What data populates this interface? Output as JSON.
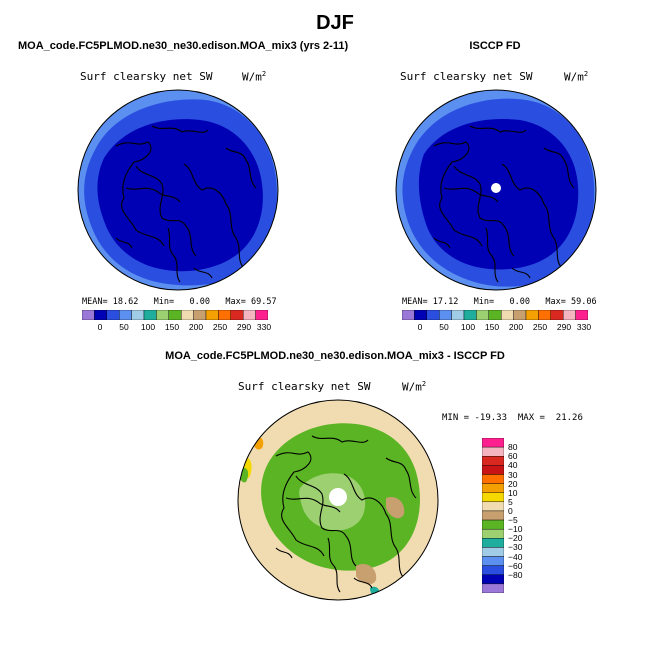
{
  "page": {
    "title": "DJF"
  },
  "panels": {
    "left": {
      "case_title": "MOA_code.FC5PLMOD.ne30_ne30.edison.MOA_mix3 (yrs 2-11)",
      "variable": "Surf clearsky net SW",
      "units_base": "W/m",
      "units_exp": "2",
      "mean_label": "MEAN=",
      "mean_value": "18.62",
      "min_label": "Min=",
      "min_value": "0.00",
      "max_label": "Max=",
      "max_value": "69.57"
    },
    "right": {
      "case_title": "ISCCP FD",
      "variable": "Surf clearsky net SW",
      "units_base": "W/m",
      "units_exp": "2",
      "mean_label": "MEAN=",
      "mean_value": "17.12",
      "min_label": "Min=",
      "min_value": "0.00",
      "max_label": "Max=",
      "max_value": "59.06"
    },
    "diff": {
      "case_title": "MOA_code.FC5PLMOD.ne30_ne30.edison.MOA_mix3 - ISCCP FD",
      "variable": "Surf clearsky net SW",
      "units_base": "W/m",
      "units_exp": "2",
      "minmax_text": "MIN = -19.33  MAX =  21.26"
    }
  },
  "chart_data": [
    {
      "type": "heatmap",
      "subtype": "polar-stereographic",
      "title": "MOA_code.FC5PLMOD.ne30_ne30.edison.MOA_mix3 (yrs 2-11)",
      "variable": "Surf clearsky net SW",
      "units": "W/m^2",
      "stats": {
        "mean": 18.62,
        "min": 0.0,
        "max": 69.57
      },
      "levels": [
        0,
        50,
        100,
        150,
        200,
        250,
        290,
        330
      ],
      "level_labels": [
        "0",
        "50",
        "100",
        "150",
        "200",
        "250",
        "290",
        "330"
      ],
      "colors": [
        "#9b78d8",
        "#0000b4",
        "#2a4ee0",
        "#5b8ff0",
        "#a0cce8",
        "#1fae9e",
        "#9cd070",
        "#5ab424",
        "#f0dcb0",
        "#c8a070",
        "#f4a000",
        "#ff7000",
        "#d82820",
        "#f4b4c0",
        "#ff2090"
      ],
      "regions": [
        {
          "name": "outer",
          "color": "#5b8ff0"
        },
        {
          "name": "mid",
          "color": "#2a4ee0"
        },
        {
          "name": "polar",
          "color": "#0000b4"
        }
      ]
    },
    {
      "type": "heatmap",
      "subtype": "polar-stereographic",
      "title": "ISCCP FD",
      "variable": "Surf clearsky net SW",
      "units": "W/m^2",
      "stats": {
        "mean": 17.12,
        "min": 0.0,
        "max": 59.06
      },
      "levels": [
        0,
        50,
        100,
        150,
        200,
        250,
        290,
        330
      ],
      "level_labels": [
        "0",
        "50",
        "100",
        "150",
        "200",
        "250",
        "290",
        "330"
      ],
      "colors": [
        "#9b78d8",
        "#0000b4",
        "#2a4ee0",
        "#5b8ff0",
        "#a0cce8",
        "#1fae9e",
        "#9cd070",
        "#5ab424",
        "#f0dcb0",
        "#c8a070",
        "#f4a000",
        "#ff7000",
        "#d82820",
        "#f4b4c0",
        "#ff2090"
      ],
      "regions": [
        {
          "name": "outer",
          "color": "#5b8ff0"
        },
        {
          "name": "mid",
          "color": "#2a4ee0"
        },
        {
          "name": "polar",
          "color": "#0000b4"
        },
        {
          "name": "pole-missing",
          "color": "#ffffff"
        }
      ]
    },
    {
      "type": "heatmap",
      "subtype": "polar-stereographic-difference",
      "title": "MOA_code.FC5PLMOD.ne30_ne30.edison.MOA_mix3 - ISCCP FD",
      "variable": "Surf clearsky net SW",
      "units": "W/m^2",
      "stats": {
        "min": -19.33,
        "max": 21.26
      },
      "levels": [
        80,
        60,
        40,
        30,
        20,
        10,
        5,
        0,
        -5,
        -10,
        -20,
        -30,
        -40,
        -60,
        -80
      ],
      "level_labels": [
        "80",
        "60",
        "40",
        "30",
        "20",
        "10",
        "5",
        "0",
        "−5",
        "−10",
        "−20",
        "−30",
        "−40",
        "−60",
        "−80"
      ],
      "colors": [
        "#ff2090",
        "#f4b4c0",
        "#d82820",
        "#c81414",
        "#ff7000",
        "#f4a000",
        "#f4d800",
        "#f0dcb0",
        "#c8a070",
        "#5ab424",
        "#9cd070",
        "#1fae9e",
        "#a0cce8",
        "#5b8ff0",
        "#2a4ee0",
        "#0000b4",
        "#9b78d8"
      ],
      "regions": [
        {
          "name": "outer",
          "color": "#f0dcb0"
        },
        {
          "name": "polar",
          "color": "#5ab424"
        },
        {
          "name": "inner",
          "color": "#9cd070"
        },
        {
          "name": "pole-missing",
          "color": "#ffffff"
        }
      ]
    }
  ]
}
